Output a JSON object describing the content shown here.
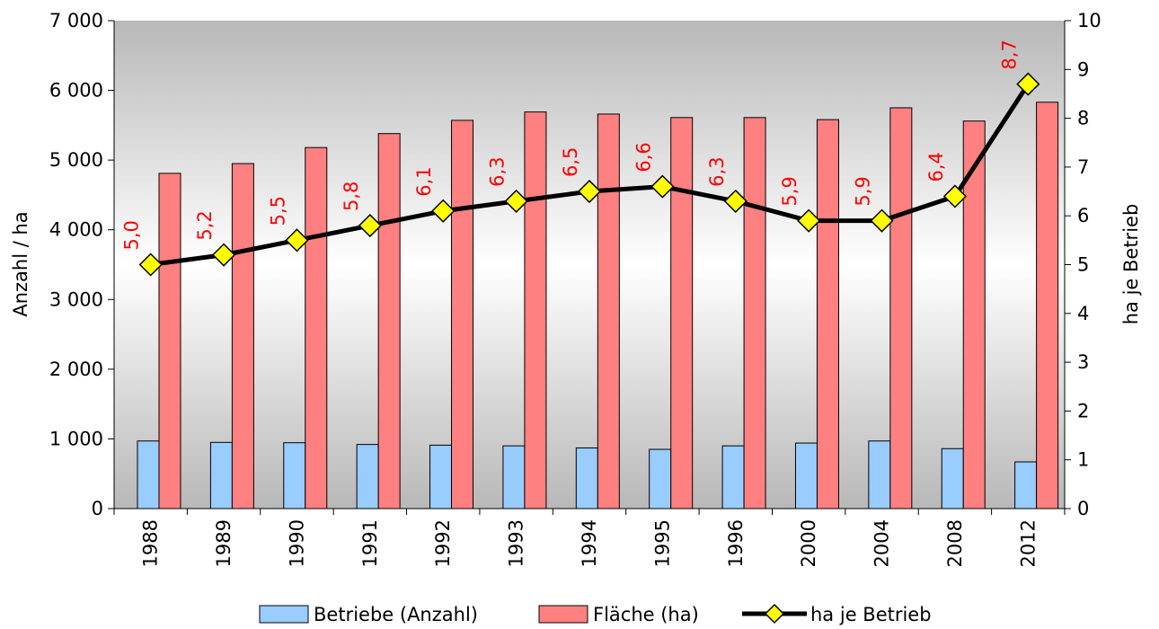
{
  "chart_data": {
    "type": "bar",
    "title": "",
    "categories": [
      "1988",
      "1989",
      "1990",
      "1991",
      "1992",
      "1993",
      "1994",
      "1995",
      "1996",
      "2000",
      "2004",
      "2008",
      "2012"
    ],
    "series": [
      {
        "name": "Betriebe (Anzahl)",
        "type": "bar",
        "axis": "left",
        "color": "#99ccff",
        "values": [
          970,
          950,
          945,
          920,
          910,
          900,
          870,
          850,
          900,
          940,
          970,
          860,
          670
        ]
      },
      {
        "name": "Fläche (ha)",
        "type": "bar",
        "axis": "left",
        "color": "#ff8080",
        "values": [
          4810,
          4950,
          5180,
          5380,
          5570,
          5690,
          5660,
          5610,
          5610,
          5580,
          5750,
          5560,
          5830
        ]
      },
      {
        "name": "ha je Betrieb",
        "type": "line",
        "axis": "right",
        "line_color": "#000000",
        "marker_color": "#ffff00",
        "marker": "diamond",
        "values": [
          5.0,
          5.2,
          5.5,
          5.8,
          6.1,
          6.3,
          6.5,
          6.6,
          6.3,
          5.9,
          5.9,
          6.4,
          8.7
        ],
        "data_labels": [
          "5,0",
          "5,2",
          "5,5",
          "5,8",
          "6,1",
          "6,3",
          "6,5",
          "6,6",
          "6,3",
          "5,9",
          "5,9",
          "6,4",
          "8,7"
        ],
        "label_color": "#ff0000"
      }
    ],
    "y_left": {
      "label": "Anzahl / ha",
      "ylim": [
        0,
        7000
      ],
      "ticks": [
        0,
        1000,
        2000,
        3000,
        4000,
        5000,
        6000,
        7000
      ],
      "tick_labels": [
        "0",
        "1 000",
        "2 000",
        "3 000",
        "4 000",
        "5 000",
        "6 000",
        "7 000"
      ]
    },
    "y_right": {
      "label": "ha je Betrieb",
      "ylim": [
        0,
        10
      ],
      "ticks": [
        0,
        1,
        2,
        3,
        4,
        5,
        6,
        7,
        8,
        9,
        10
      ],
      "tick_labels": [
        "0",
        "1",
        "2",
        "3",
        "4",
        "5",
        "6",
        "7",
        "8",
        "9",
        "10"
      ]
    },
    "xlabel": "",
    "grid": false,
    "legend": "bottom",
    "background": "gradient gray-white-gray"
  }
}
